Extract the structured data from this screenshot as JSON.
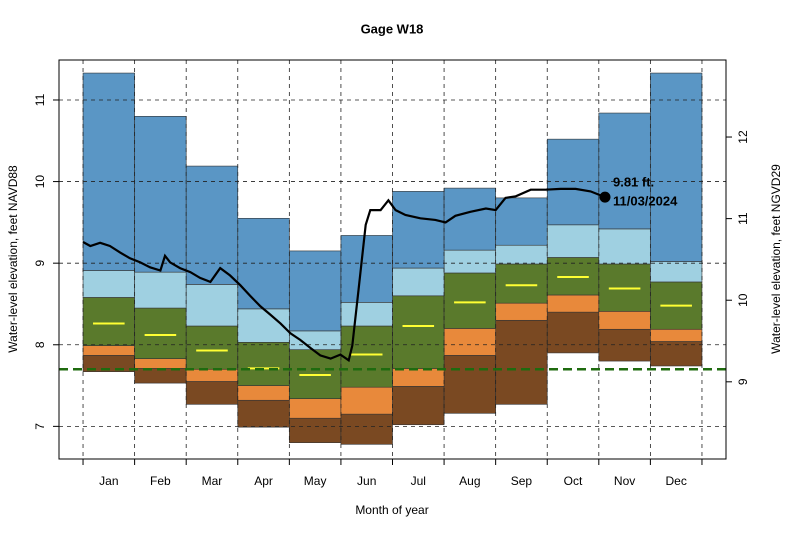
{
  "chart_data": {
    "type": "percentile_band",
    "title": "Gage W18",
    "xlabel": "Month of year",
    "ylabel": "Water-level elevation, feet NAVD88",
    "y2label": "Water-level elevation, feet NGVD29",
    "categories": [
      "Jan",
      "Feb",
      "Mar",
      "Apr",
      "May",
      "Jun",
      "Jul",
      "Aug",
      "Sep",
      "Oct",
      "Nov",
      "Dec"
    ],
    "xlim": [
      -0.466,
      12.466
    ],
    "ylim": [
      6.6,
      11.49
    ],
    "yticks": [
      7,
      8,
      9,
      10,
      11
    ],
    "y2lim": [
      8.054,
      12.944
    ],
    "y2ticks": [
      9,
      10,
      11,
      12
    ],
    "grid": true,
    "levels": [
      {
        "values": [
          7.67,
          7.53,
          7.27,
          6.99,
          6.8,
          6.78,
          7.02,
          7.16,
          7.27,
          7.9,
          7.8,
          7.74
        ]
      },
      {
        "color": "#7a4922",
        "values": [
          7.87,
          7.71,
          7.55,
          7.32,
          7.1,
          7.15,
          7.49,
          7.87,
          8.3,
          8.4,
          8.19,
          8.04
        ]
      },
      {
        "color": "#e8893b",
        "values": [
          7.99,
          7.83,
          7.7,
          7.5,
          7.34,
          7.48,
          7.71,
          8.2,
          8.51,
          8.61,
          8.41,
          8.19
        ]
      },
      {
        "color": "#5a7a2c",
        "values": [
          8.58,
          8.45,
          8.23,
          8.03,
          7.94,
          8.23,
          8.6,
          8.88,
          8.99,
          9.07,
          8.99,
          8.77
        ]
      },
      {
        "color": "#9fd0e1",
        "values": [
          8.91,
          8.89,
          8.74,
          8.44,
          8.17,
          8.52,
          8.94,
          9.16,
          9.22,
          9.47,
          9.42,
          9.02
        ]
      },
      {
        "color": "#5a96c5",
        "values": [
          11.33,
          10.8,
          10.19,
          9.55,
          9.15,
          9.34,
          9.88,
          9.92,
          9.8,
          10.52,
          10.84,
          11.33
        ]
      }
    ],
    "median": {
      "color": "#ffff33",
      "values": [
        8.26,
        8.12,
        7.93,
        7.71,
        7.63,
        7.88,
        8.23,
        8.52,
        8.73,
        8.83,
        8.69,
        8.48
      ]
    },
    "reference": {
      "color": "#1f6b0f",
      "value": 7.7
    },
    "series": [
      {
        "color": "#000000",
        "x": [
          0,
          0.14,
          0.33,
          0.52,
          0.72,
          0.91,
          1.11,
          1.3,
          1.5,
          1.59,
          1.69,
          1.88,
          2.08,
          2.27,
          2.47,
          2.66,
          2.85,
          3.05,
          3.24,
          3.44,
          3.63,
          3.83,
          4.02,
          4.21,
          4.41,
          4.6,
          4.8,
          4.99,
          5.15,
          5.22,
          5.34,
          5.48,
          5.57,
          5.77,
          5.92,
          6.06,
          6.25,
          6.54,
          6.83,
          7.03,
          7.22,
          7.51,
          7.81,
          8.0,
          8.19,
          8.39,
          8.68,
          8.97,
          9.26,
          9.55,
          9.84,
          10.12
        ],
        "values": [
          9.26,
          9.21,
          9.25,
          9.21,
          9.13,
          9.06,
          9.01,
          8.95,
          8.91,
          9.09,
          9.01,
          8.94,
          8.89,
          8.82,
          8.77,
          8.94,
          8.85,
          8.73,
          8.6,
          8.47,
          8.37,
          8.26,
          8.14,
          8.06,
          7.96,
          7.87,
          7.83,
          7.88,
          7.81,
          7.99,
          8.67,
          9.47,
          9.65,
          9.65,
          9.77,
          9.65,
          9.59,
          9.55,
          9.53,
          9.5,
          9.58,
          9.63,
          9.67,
          9.65,
          9.8,
          9.82,
          9.9,
          9.9,
          9.91,
          9.91,
          9.88,
          9.81
        ]
      }
    ],
    "current": {
      "x": 10.12,
      "value": 9.81,
      "value_label": "9.81 ft.",
      "date": "11/03/2024"
    }
  }
}
